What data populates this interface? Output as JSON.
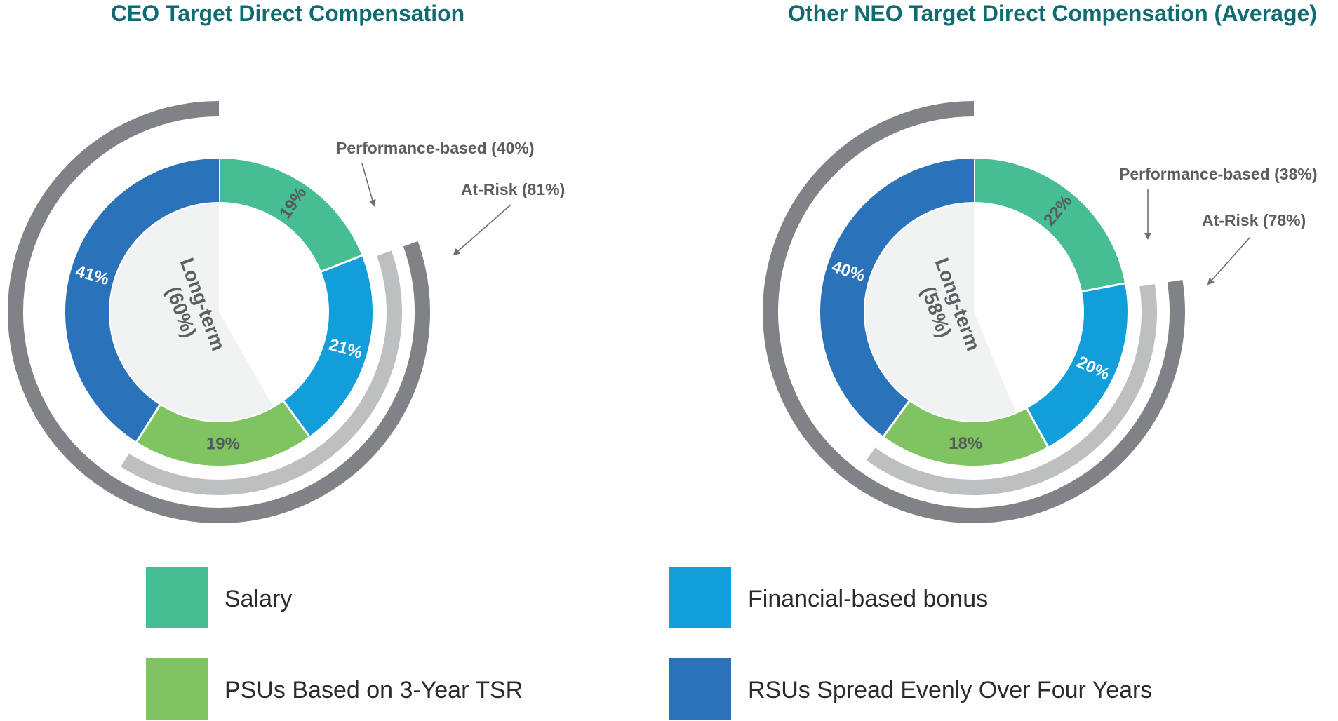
{
  "chart_data": [
    {
      "type": "pie",
      "title": "CEO Target Direct Compensation",
      "categories": [
        "Salary",
        "Financial-based bonus",
        "PSUs Based on 3-Year TSR",
        "RSUs Spread Evenly Over Four Years"
      ],
      "values": [
        19,
        21,
        19,
        41
      ],
      "labels": [
        "19%",
        "21%",
        "19%",
        "41%"
      ],
      "center_label": [
        "Long-term",
        "(60%)"
      ],
      "center_value": 60,
      "annotations": [
        {
          "text": "Performance-based (40%)",
          "value": 40
        },
        {
          "text": "At-Risk (81%)",
          "value": 81
        }
      ]
    },
    {
      "type": "pie",
      "title": "Other NEO Target Direct Compensation (Average)",
      "categories": [
        "Salary",
        "Financial-based bonus",
        "PSUs Based on 3-Year TSR",
        "RSUs Spread Evenly Over Four Years"
      ],
      "values": [
        22,
        20,
        18,
        40
      ],
      "labels": [
        "22%",
        "20%",
        "18%",
        "40%"
      ],
      "center_label": [
        "Long-term",
        "(58%)"
      ],
      "center_value": 58,
      "annotations": [
        {
          "text": "Performance-based (38%)",
          "value": 38
        },
        {
          "text": "At-Risk (78%)",
          "value": 78
        }
      ]
    }
  ],
  "legend": [
    {
      "label": "Salary",
      "color": "#46bd93"
    },
    {
      "label": "Financial-based bonus",
      "color": "#119edb"
    },
    {
      "label": "PSUs Based on 3-Year TSR",
      "color": "#80c462"
    },
    {
      "label": "RSUs Spread Evenly Over Four Years",
      "color": "#2a72b9"
    }
  ],
  "colors": {
    "title": "#0f6b6f",
    "center_fill": "#f1f2f2",
    "performance_arc": "#bdbfc1",
    "at_risk_arc": "#808285",
    "annotation_text": "#5a5e62"
  }
}
